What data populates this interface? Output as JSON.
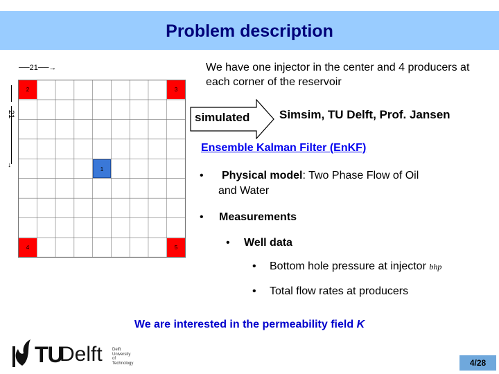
{
  "slide": {
    "title": "Problem description",
    "page_number": "4/28"
  },
  "grid_figure": {
    "width_label": "21",
    "height_label": "21",
    "wells": [
      {
        "id": "1",
        "type": "injector",
        "color": "#3a78d8"
      },
      {
        "id": "2",
        "type": "producer",
        "color": "#ff0000"
      },
      {
        "id": "3",
        "type": "producer",
        "color": "#ff0000"
      },
      {
        "id": "4",
        "type": "producer",
        "color": "#ff0000"
      },
      {
        "id": "5",
        "type": "producer",
        "color": "#ff0000"
      }
    ]
  },
  "content": {
    "intro": "We have one injector in the center and 4 producers at each corner of the reservoir",
    "simulated_label": "simulated",
    "simulator": "Simsim, TU Delft, Prof. Jansen",
    "enkf_heading": "Ensemble Kalman Filter (EnKF)",
    "physical_model_label": "Physical model",
    "physical_model_text": ": Two Phase Flow of Oil",
    "physical_model_text2": "and Water",
    "measurements_label": "Measurements",
    "well_data_label": "Well data",
    "bhp_text": "Bottom hole pressure at injector ",
    "bhp_abbrev": "bhp",
    "flow_rates_text": "Total flow rates at producers",
    "interest_text": "We are interested in the permeability field ",
    "interest_symbol": "K",
    "bullet": "•"
  },
  "logo": {
    "tu": "TU",
    "delft": "Delft",
    "small_text_1": "Delft",
    "small_text_2": "University of",
    "small_text_3": "Technology"
  },
  "colors": {
    "title_bar": "#99ccff",
    "title_text": "#00007a",
    "link": "#0000ee",
    "interest": "#0000cc",
    "page_badge": "#6fa8dc"
  }
}
